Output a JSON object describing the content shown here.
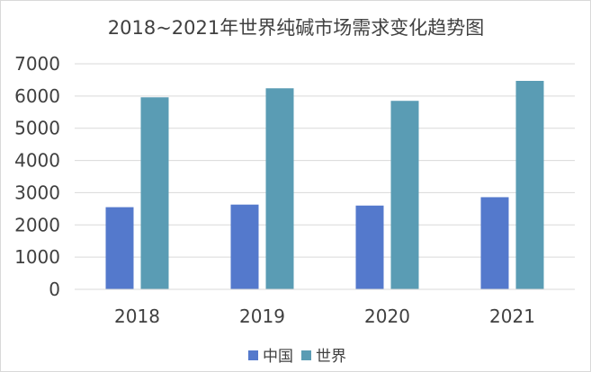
{
  "chart_data": {
    "type": "bar",
    "title": "2018~2021年世界纯碱市场需求变化趋势图",
    "categories": [
      "2018",
      "2019",
      "2020",
      "2021"
    ],
    "series": [
      {
        "name": "中国",
        "values": [
          2550,
          2630,
          2600,
          2860
        ],
        "color": "#5479cc"
      },
      {
        "name": "世界",
        "values": [
          5960,
          6240,
          5850,
          6470
        ],
        "color": "#5a9cb4"
      }
    ],
    "ylim": [
      0,
      7000
    ],
    "y_ticks": [
      "0",
      "1000",
      "2000",
      "3000",
      "4000",
      "5000",
      "6000",
      "7000"
    ],
    "grid": true,
    "legend_position": "bottom"
  }
}
